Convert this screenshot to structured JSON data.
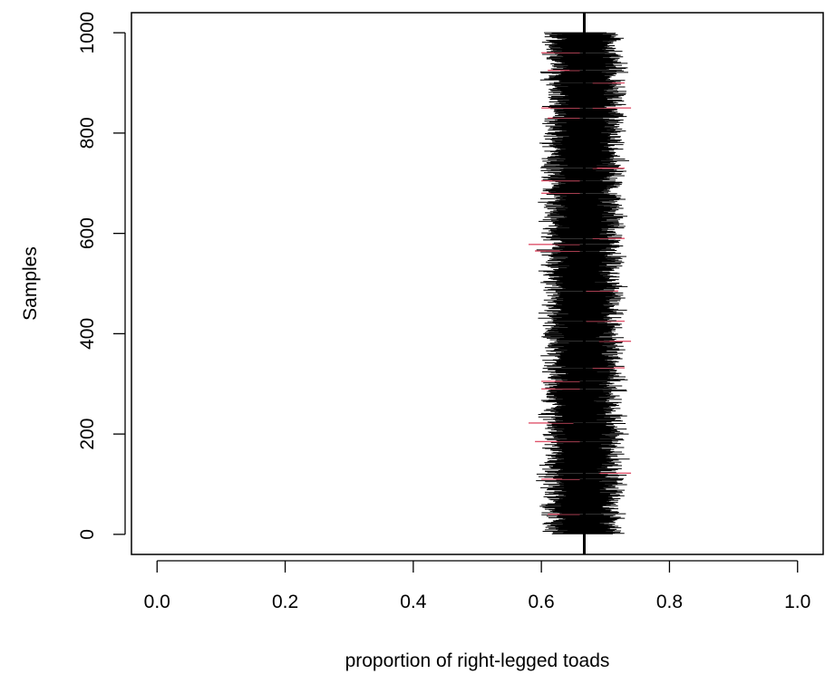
{
  "chart_data": {
    "type": "scatter",
    "title": "",
    "xlabel": "proportion of right-legged toads",
    "ylabel": "Samples",
    "xlim": [
      -0.04,
      1.04
    ],
    "ylim": [
      -40,
      1040
    ],
    "x_ticks": [
      0.0,
      0.2,
      0.4,
      0.6,
      0.8,
      1.0
    ],
    "x_tick_labels": [
      "0.0",
      "0.2",
      "0.4",
      "0.6",
      "0.8",
      "1.0"
    ],
    "y_ticks": [
      0,
      200,
      400,
      600,
      800,
      1000
    ],
    "y_tick_labels": [
      "0",
      "200",
      "400",
      "600",
      "800",
      "1000"
    ],
    "n_samples": 1000,
    "reference_line_x": 0.667,
    "interval_half_width_typical": 0.045,
    "interval_center_range": [
      0.63,
      0.7
    ],
    "series": [
      {
        "values_description": "interval covers reference",
        "color": "#000000"
      },
      {
        "values_description": "interval misses reference",
        "color": "#df536b"
      }
    ],
    "missed_intervals_examples": [
      {
        "sample": 40,
        "lo": 0.61,
        "hi": 0.66
      },
      {
        "sample": 110,
        "lo": 0.6,
        "hi": 0.66
      },
      {
        "sample": 122,
        "lo": 0.69,
        "hi": 0.74
      },
      {
        "sample": 185,
        "lo": 0.59,
        "hi": 0.66
      },
      {
        "sample": 222,
        "lo": 0.58,
        "hi": 0.65
      },
      {
        "sample": 290,
        "lo": 0.6,
        "hi": 0.66
      },
      {
        "sample": 305,
        "lo": 0.6,
        "hi": 0.66
      },
      {
        "sample": 332,
        "lo": 0.68,
        "hi": 0.73
      },
      {
        "sample": 385,
        "lo": 0.69,
        "hi": 0.74
      },
      {
        "sample": 425,
        "lo": 0.67,
        "hi": 0.73
      },
      {
        "sample": 485,
        "lo": 0.67,
        "hi": 0.72
      },
      {
        "sample": 565,
        "lo": 0.59,
        "hi": 0.66
      },
      {
        "sample": 578,
        "lo": 0.58,
        "hi": 0.66
      },
      {
        "sample": 590,
        "lo": 0.68,
        "hi": 0.73
      },
      {
        "sample": 680,
        "lo": 0.6,
        "hi": 0.66
      },
      {
        "sample": 705,
        "lo": 0.6,
        "hi": 0.66
      },
      {
        "sample": 730,
        "lo": 0.68,
        "hi": 0.73
      },
      {
        "sample": 830,
        "lo": 0.61,
        "hi": 0.66
      },
      {
        "sample": 850,
        "lo": 0.6,
        "hi": 0.66
      },
      {
        "sample": 850,
        "lo": 0.68,
        "hi": 0.74
      },
      {
        "sample": 900,
        "lo": 0.68,
        "hi": 0.73
      },
      {
        "sample": 925,
        "lo": 0.61,
        "hi": 0.66
      },
      {
        "sample": 960,
        "lo": 0.6,
        "hi": 0.66
      }
    ]
  }
}
